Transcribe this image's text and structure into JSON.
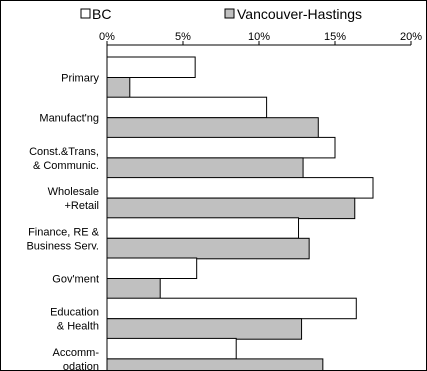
{
  "chart_data": {
    "type": "bar",
    "orientation": "horizontal",
    "categories": [
      [
        "Primary"
      ],
      [
        "Manufact'ng"
      ],
      [
        "Const.&Trans,",
        "& Communic."
      ],
      [
        "Wholesale",
        "+Retail"
      ],
      [
        "Finance, RE &",
        "Business Serv."
      ],
      [
        "Gov'ment"
      ],
      [
        "Education",
        "& Health"
      ],
      [
        "Accomm-",
        "odation"
      ]
    ],
    "series": [
      {
        "name": "BC",
        "color": "#ffffff",
        "values": [
          5.8,
          10.5,
          15.0,
          17.5,
          12.6,
          5.9,
          16.4,
          8.5
        ]
      },
      {
        "name": "Vancouver-Hastings",
        "color": "#c0c0c0",
        "values": [
          1.5,
          13.9,
          12.9,
          16.3,
          13.3,
          3.5,
          12.8,
          14.2
        ]
      }
    ],
    "xlim": [
      0,
      20
    ],
    "x_ticks": [
      "0%",
      "5%",
      "10%",
      "15%",
      "20%"
    ],
    "x_axis_position": "top",
    "grid": false,
    "legend_position": "top"
  }
}
